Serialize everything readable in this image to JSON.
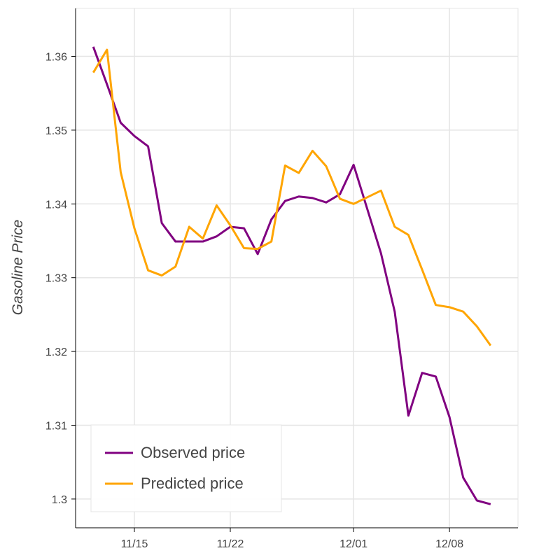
{
  "chart_data": {
    "type": "line",
    "title": "",
    "xlabel": "",
    "ylabel": "Gasoline Price",
    "x_ticks": [
      "11/15",
      "11/22",
      "12/01",
      "12/08"
    ],
    "x_tick_values": [
      "2014-11-15",
      "2014-11-22",
      "2014-12-01",
      "2014-12-08"
    ],
    "y_ticks": [
      "1.3",
      "1.31",
      "1.32",
      "1.33",
      "1.34",
      "1.35",
      "1.36"
    ],
    "y_tick_values": [
      1.3,
      1.31,
      1.32,
      1.33,
      1.34,
      1.35,
      1.36
    ],
    "xlim": [
      "2014-11-10 17:00",
      "2014-12-13"
    ],
    "ylim": [
      1.2961,
      1.3665
    ],
    "grid": true,
    "legend_position": "bottom-left",
    "x": [
      "2014-11-12",
      "2014-11-13",
      "2014-11-14",
      "2014-11-15",
      "2014-11-16",
      "2014-11-17",
      "2014-11-18",
      "2014-11-19",
      "2014-11-20",
      "2014-11-21",
      "2014-11-22",
      "2014-11-23",
      "2014-11-24",
      "2014-11-25",
      "2014-11-26",
      "2014-11-27",
      "2014-11-28",
      "2014-11-29",
      "2014-11-30",
      "2014-12-01",
      "2014-12-02",
      "2014-12-03",
      "2014-12-04",
      "2014-12-05",
      "2014-12-06",
      "2014-12-07",
      "2014-12-08",
      "2014-12-09",
      "2014-12-10",
      "2014-12-11"
    ],
    "series": [
      {
        "name": "Observed price",
        "color": "#800080",
        "values": [
          1.3613,
          1.3562,
          1.351,
          1.3492,
          1.3478,
          1.3374,
          1.3349,
          1.3349,
          1.3349,
          1.3356,
          1.3369,
          1.3367,
          1.3332,
          1.3379,
          1.3404,
          1.341,
          1.3408,
          1.3402,
          1.3413,
          1.3453,
          1.3393,
          1.3333,
          1.3254,
          1.3113,
          1.3171,
          1.3166,
          1.3111,
          1.3029,
          1.2998,
          1.2993
        ]
      },
      {
        "name": "Predicted price",
        "color": "#FFA500",
        "values": [
          1.3578,
          1.3609,
          1.3443,
          1.3367,
          1.331,
          1.3303,
          1.3315,
          1.3369,
          1.3353,
          1.3398,
          1.3371,
          1.334,
          1.3339,
          1.3349,
          1.3452,
          1.3442,
          1.3472,
          1.3451,
          1.3407,
          1.34,
          1.3409,
          1.3418,
          1.3369,
          1.3358,
          1.3311,
          1.3263,
          1.326,
          1.3254,
          1.3234,
          1.3208
        ]
      }
    ]
  }
}
